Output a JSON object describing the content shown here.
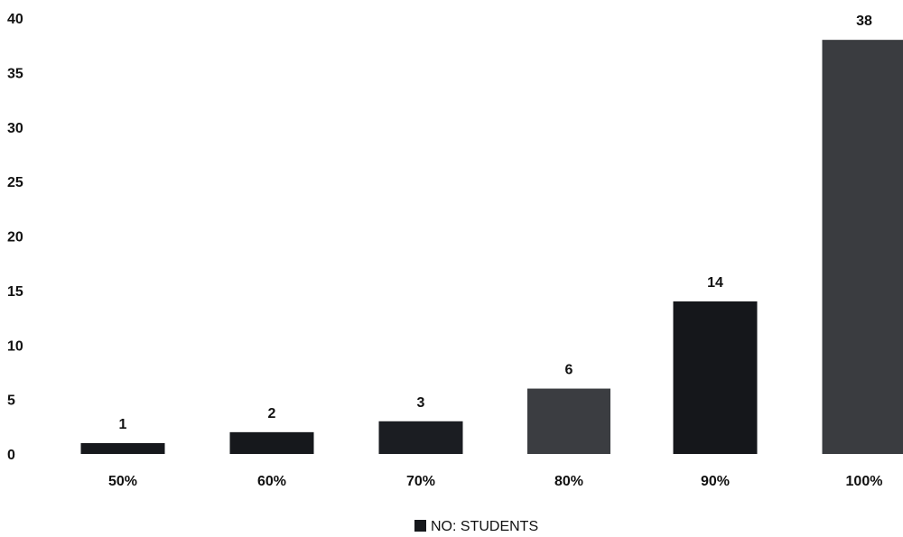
{
  "chart_data": {
    "type": "bar",
    "categories": [
      "50%",
      "60%",
      "70%",
      "80%",
      "90%",
      "100%"
    ],
    "series": [
      {
        "name": "NO: STUDENTS",
        "values": [
          1,
          2,
          3,
          6,
          14,
          38
        ],
        "colors": [
          "#16181c",
          "#16181c",
          "#1b1d22",
          "#3b3d41",
          "#15171b",
          "#3a3c40"
        ]
      }
    ],
    "data_labels": [
      "1",
      "2",
      "3",
      "6",
      "14",
      "38"
    ],
    "y_ticks": [
      "0",
      "5",
      "10",
      "15",
      "20",
      "25",
      "30",
      "35",
      "40"
    ],
    "ylim": [
      0,
      40
    ],
    "title": "",
    "xlabel": "",
    "ylabel": "",
    "grid": false,
    "legend": {
      "position": "bottom-center",
      "label": "NO: STUDENTS",
      "color": "#16181c"
    }
  }
}
